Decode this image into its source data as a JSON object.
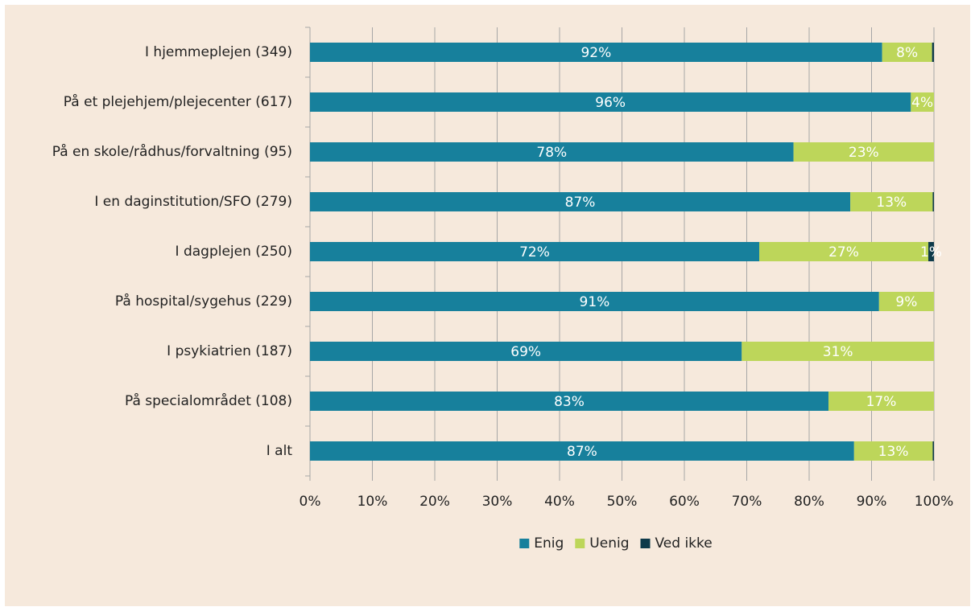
{
  "chart_data": {
    "type": "stacked-bar-horizontal",
    "categories": [
      "I hjemmeplejen (349)",
      "På et plejehjem/plejecenter (617)",
      "På en skole/rådhus/forvaltning (95)",
      "I en daginstitution/SFO (279)",
      "I dagplejen (250)",
      "På hospital/sygehus (229)",
      "I psykiatrien (187)",
      "På specialområdet (108)",
      "I alt"
    ],
    "series": [
      {
        "name": "Enig",
        "color": "#17809c",
        "values": [
          91.7,
          96.3,
          77.5,
          86.6,
          72,
          91.2,
          69.2,
          83.1,
          87.2
        ],
        "value_labels": [
          "92%",
          "96%",
          "78%",
          "87%",
          "72%",
          "91%",
          "69%",
          "83%",
          "87%"
        ]
      },
      {
        "name": "Uenig",
        "color": "#bdd65a",
        "values": [
          8.0,
          3.7,
          22.5,
          13.2,
          27.1,
          8.8,
          30.8,
          16.9,
          12.6
        ],
        "value_labels": [
          "8%",
          "4%",
          "23%",
          "13%",
          "27%",
          "9%",
          "31%",
          "17%",
          "13%"
        ]
      },
      {
        "name": "Ved ikke",
        "color": "#0e3a4a",
        "values": [
          0.3,
          0,
          0,
          0.2,
          0.9,
          0,
          0,
          0,
          0.2
        ],
        "value_labels": [
          null,
          null,
          null,
          null,
          "1%",
          null,
          null,
          null,
          null
        ]
      }
    ],
    "xlim": [
      0,
      100
    ],
    "xticks": [
      {
        "value": 0,
        "label": "0%"
      },
      {
        "value": 10,
        "label": "10%"
      },
      {
        "value": 20,
        "label": "20%"
      },
      {
        "value": 30,
        "label": "30%"
      },
      {
        "value": 40,
        "label": "40%"
      },
      {
        "value": 50,
        "label": "50%"
      },
      {
        "value": 60,
        "label": "60%"
      },
      {
        "value": 70,
        "label": "70%"
      },
      {
        "value": 80,
        "label": "80%"
      },
      {
        "value": 90,
        "label": "90%"
      },
      {
        "value": 100,
        "label": "100%"
      }
    ],
    "grid": true,
    "legend": "bottom"
  }
}
